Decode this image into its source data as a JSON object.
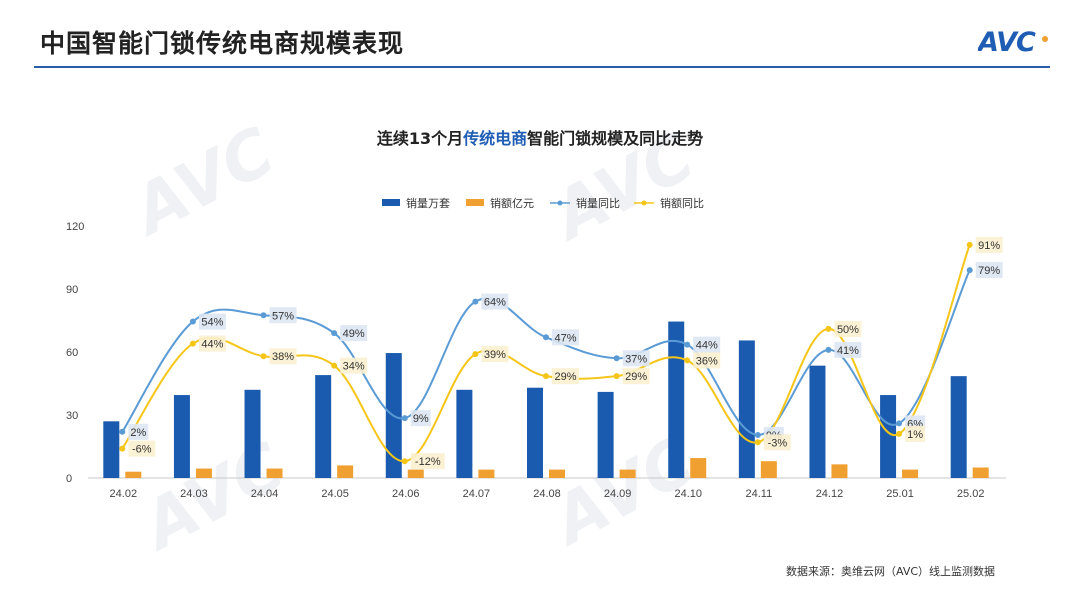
{
  "page": {
    "title": "中国智能门锁传统电商规模表现",
    "logo_text": "AVC",
    "source_note": "数据来源：奥维云网（AVC）线上监测数据",
    "accent_color": "#2a5da8"
  },
  "chart_data": {
    "type": "bar",
    "title_parts": [
      {
        "text": "连续13个月",
        "color": "#222222"
      },
      {
        "text": "传统电商",
        "color": "#1f5db5"
      },
      {
        "text": "智能门锁规模及同比走势",
        "color": "#222222"
      }
    ],
    "categories": [
      "24.02",
      "24.03",
      "24.04",
      "24.05",
      "24.06",
      "24.07",
      "24.08",
      "24.09",
      "24.10",
      "24.11",
      "24.12",
      "25.01",
      "25.02"
    ],
    "ylim": [
      0,
      120
    ],
    "yticks": [
      0,
      30,
      60,
      90,
      120
    ],
    "legend_position": "top-center",
    "grid": false,
    "series": [
      {
        "name": "销量万套",
        "kind": "bar",
        "color": "#1a5bb0",
        "values": [
          27,
          39.5,
          42,
          49,
          59.5,
          42,
          43,
          41,
          74.5,
          65.5,
          53.5,
          39.5,
          48.5
        ]
      },
      {
        "name": "销额亿元",
        "kind": "bar",
        "color": "#f0a030",
        "values": [
          3,
          4.5,
          4.5,
          6,
          4,
          4,
          4,
          4,
          9.5,
          8,
          6.5,
          4,
          5
        ]
      },
      {
        "name": "销量同比",
        "kind": "line",
        "color": "#5b9bd5",
        "values": [
          22,
          74.5,
          77.5,
          69,
          28.5,
          84,
          67,
          57,
          63.5,
          20.5,
          61,
          26,
          99
        ],
        "labels": [
          "2%",
          "54%",
          "57%",
          "49%",
          "9%",
          "64%",
          "47%",
          "37%",
          "44%",
          "0%",
          "41%",
          "6%",
          "79%"
        ]
      },
      {
        "name": "销额同比",
        "kind": "line",
        "color": "#f5c518",
        "values": [
          14,
          64,
          58,
          53.5,
          8,
          59,
          48.5,
          48.5,
          56,
          17,
          71,
          21,
          111
        ],
        "labels": [
          "-6%",
          "44%",
          "38%",
          "34%",
          "-12%",
          "39%",
          "29%",
          "29%",
          "36%",
          "-3%",
          "50%",
          "1%",
          "91%"
        ]
      }
    ]
  }
}
